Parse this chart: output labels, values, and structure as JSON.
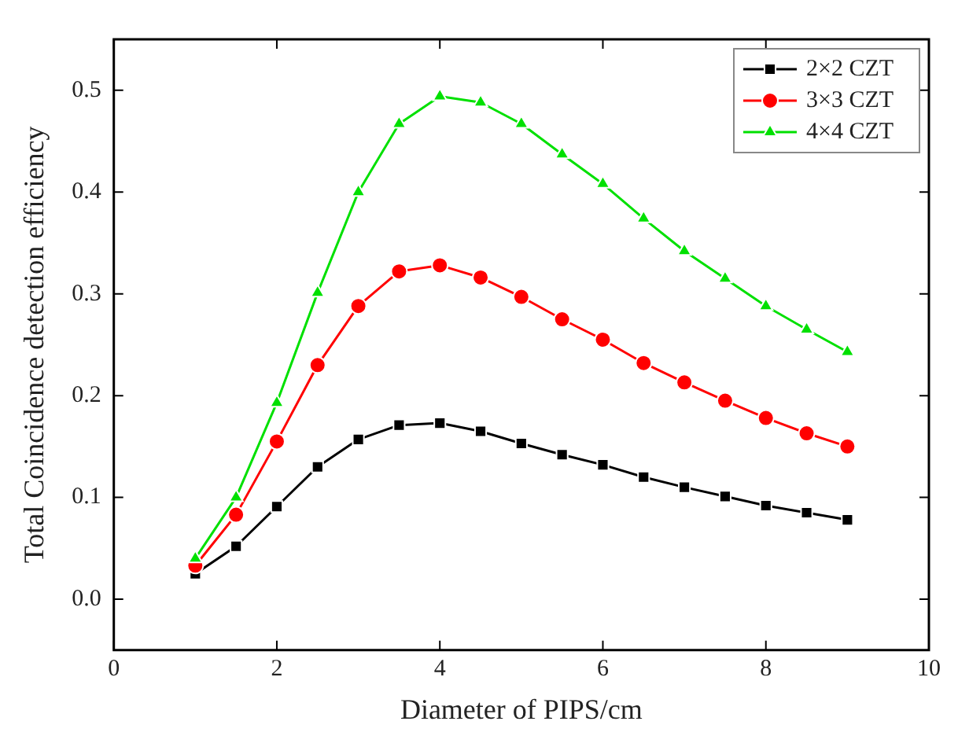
{
  "chart_data": {
    "type": "line",
    "xlabel": "Diameter of PIPS/cm",
    "ylabel": "Total Coincidence detection efficiency",
    "x": [
      1,
      1.5,
      2,
      2.5,
      3,
      3.5,
      4,
      4.5,
      5,
      5.5,
      6,
      6.5,
      7,
      7.5,
      8,
      8.5,
      9
    ],
    "series": [
      {
        "name": "2×2 CZT",
        "color": "#000000",
        "marker": "square",
        "values": [
          0.025,
          0.052,
          0.091,
          0.13,
          0.157,
          0.171,
          0.173,
          0.165,
          0.153,
          0.142,
          0.132,
          0.12,
          0.11,
          0.101,
          0.092,
          0.085,
          0.078
        ]
      },
      {
        "name": "3×3 CZT",
        "color": "#ff0000",
        "marker": "circle",
        "values": [
          0.033,
          0.083,
          0.155,
          0.23,
          0.288,
          0.322,
          0.328,
          0.316,
          0.297,
          0.275,
          0.255,
          0.232,
          0.213,
          0.195,
          0.178,
          0.163,
          0.15
        ]
      },
      {
        "name": "4×4 CZT",
        "color": "#00e000",
        "marker": "triangle",
        "values": [
          0.04,
          0.1,
          0.193,
          0.301,
          0.4,
          0.467,
          0.494,
          0.488,
          0.467,
          0.437,
          0.408,
          0.374,
          0.342,
          0.315,
          0.288,
          0.265,
          0.243
        ]
      }
    ],
    "xlim": [
      0,
      10
    ],
    "xticks": [
      0,
      2,
      4,
      6,
      8,
      10
    ],
    "ylim": [
      -0.05,
      0.55
    ],
    "yticks": [
      {
        "value": 0,
        "label": "0.0"
      },
      0.1,
      0.2,
      0.3,
      0.4,
      0.5
    ],
    "legend": "top right",
    "grid": false,
    "line_style": "solid"
  }
}
